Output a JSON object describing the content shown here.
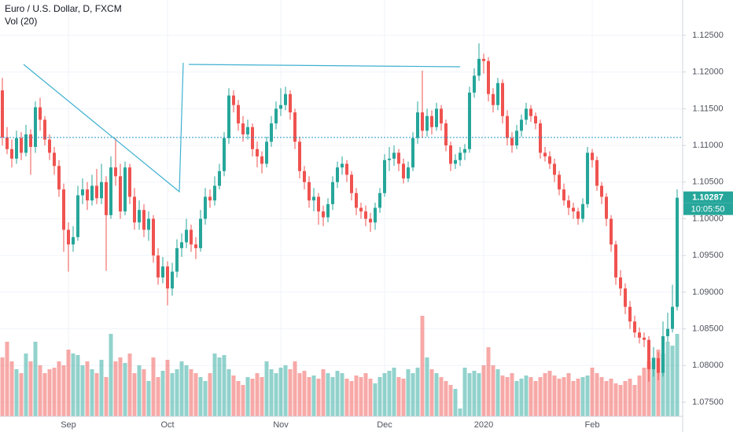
{
  "chart_data": {
    "type": "candlestick",
    "title": "Euro / U.S. Dollar, D, FXCM",
    "volume_title": "Vol (20)",
    "last_price_label": "1.10287",
    "countdown": "10:05:50",
    "up_color": "#26a69a",
    "down_color": "#ef5350",
    "ylim": [
      1.07307,
      1.12982
    ],
    "yticks": [
      {
        "value": 1.125,
        "label": "1.12500"
      },
      {
        "value": 1.12,
        "label": "1.12000"
      },
      {
        "value": 1.115,
        "label": "1.11500"
      },
      {
        "value": 1.11,
        "label": "1.11000"
      },
      {
        "value": 1.105,
        "label": "1.10500"
      },
      {
        "value": 1.1,
        "label": "1.10000"
      },
      {
        "value": 1.095,
        "label": "1.09500"
      },
      {
        "value": 1.09,
        "label": "1.09000"
      },
      {
        "value": 1.085,
        "label": "1.08500"
      },
      {
        "value": 1.08,
        "label": "1.08000"
      },
      {
        "value": 1.075,
        "label": "1.07500"
      }
    ],
    "grid": true,
    "vol_lim": [
      0,
      128
    ],
    "categories": [
      null,
      null,
      null,
      null,
      null,
      null,
      null,
      null,
      null,
      null,
      null,
      null,
      null,
      null,
      "Sep",
      null,
      null,
      null,
      null,
      null,
      null,
      null,
      null,
      null,
      null,
      null,
      null,
      null,
      null,
      null,
      null,
      null,
      null,
      null,
      null,
      "Oct",
      null,
      null,
      null,
      null,
      null,
      null,
      null,
      null,
      null,
      null,
      null,
      null,
      null,
      null,
      null,
      null,
      null,
      null,
      null,
      null,
      null,
      null,
      null,
      "Nov",
      null,
      null,
      null,
      null,
      null,
      null,
      null,
      null,
      null,
      null,
      null,
      null,
      null,
      null,
      null,
      null,
      null,
      null,
      null,
      null,
      null,
      "Dec",
      null,
      null,
      null,
      null,
      null,
      null,
      null,
      null,
      null,
      null,
      null,
      null,
      null,
      null,
      null,
      null,
      null,
      null,
      null,
      null,
      "2020",
      null,
      null,
      null,
      null,
      null,
      null,
      null,
      null,
      null,
      null,
      null,
      null,
      null,
      null,
      null,
      null,
      null,
      null,
      null,
      null,
      null,
      null,
      "Feb",
      null,
      null,
      null,
      null,
      null,
      null,
      null,
      null,
      null,
      null,
      null,
      null,
      null,
      null,
      null,
      null,
      null,
      null
    ],
    "candles": [
      [
        1.1175,
        1.1192,
        1.11,
        1.1111
      ],
      [
        1.1111,
        1.1125,
        1.1088,
        1.1095
      ],
      [
        1.1095,
        1.1108,
        1.107,
        1.1082
      ],
      [
        1.1082,
        1.112,
        1.1075,
        1.111
      ],
      [
        1.111,
        1.1118,
        1.108,
        1.109
      ],
      [
        1.109,
        1.1128,
        1.1085,
        1.1115
      ],
      [
        1.1115,
        1.1122,
        1.106,
        1.1098
      ],
      [
        1.1098,
        1.116,
        1.109,
        1.1152
      ],
      [
        1.1152,
        1.1165,
        1.112,
        1.1135
      ],
      [
        1.1135,
        1.114,
        1.11,
        1.1108
      ],
      [
        1.1108,
        1.1115,
        1.108,
        1.109
      ],
      [
        1.109,
        1.1098,
        1.106,
        1.1072
      ],
      [
        1.1072,
        1.108,
        1.103,
        1.104
      ],
      [
        1.104,
        1.1048,
        1.0955,
        1.0985
      ],
      [
        1.0985,
        1.0995,
        1.0928,
        1.0965
      ],
      [
        1.0965,
        1.099,
        1.0955,
        1.0975
      ],
      [
        1.0975,
        1.1045,
        1.097,
        1.1032
      ],
      [
        1.1032,
        1.1055,
        1.102,
        1.104
      ],
      [
        1.104,
        1.105,
        1.1012,
        1.1025
      ],
      [
        1.1025,
        1.106,
        1.1018,
        1.1045
      ],
      [
        1.1045,
        1.1068,
        1.102,
        1.1028
      ],
      [
        1.1028,
        1.1075,
        1.102,
        1.105
      ],
      [
        1.105,
        1.1058,
        1.0929,
        1.1005
      ],
      [
        1.1005,
        1.1085,
        1.1,
        1.107
      ],
      [
        1.107,
        1.111,
        1.1045,
        1.1058
      ],
      [
        1.1058,
        1.1075,
        1.1,
        1.101
      ],
      [
        1.101,
        1.1078,
        1.1005,
        1.107
      ],
      [
        1.107,
        1.1075,
        1.102,
        1.103
      ],
      [
        1.103,
        1.1042,
        1.0985,
        1.0995
      ],
      [
        1.0995,
        1.1025,
        1.0985,
        1.1012
      ],
      [
        1.1012,
        1.102,
        1.0975,
        1.0985
      ],
      [
        1.0985,
        1.101,
        1.097,
        1.1
      ],
      [
        1.1,
        1.1005,
        1.094,
        1.095
      ],
      [
        1.095,
        1.096,
        1.091,
        1.092
      ],
      [
        1.092,
        1.0948,
        1.0912,
        1.0935
      ],
      [
        1.0935,
        1.0942,
        1.0882,
        1.0905
      ],
      [
        1.0905,
        1.094,
        1.0895,
        1.0928
      ],
      [
        1.0928,
        1.0972,
        1.092,
        1.096
      ],
      [
        1.096,
        1.098,
        1.0948,
        1.0968
      ],
      [
        1.0968,
        1.1,
        1.096,
        1.0985
      ],
      [
        1.0985,
        1.0992,
        1.0955,
        1.0965
      ],
      [
        1.0965,
        1.0975,
        1.0945,
        1.096
      ],
      [
        1.096,
        1.1012,
        1.0955,
        1.1
      ],
      [
        1.1,
        1.1042,
        1.0992,
        1.103
      ],
      [
        1.103,
        1.104,
        1.1015,
        1.1025
      ],
      [
        1.1025,
        1.1058,
        1.1018,
        1.1045
      ],
      [
        1.1045,
        1.1075,
        1.104,
        1.1065
      ],
      [
        1.1065,
        1.1118,
        1.1058,
        1.111
      ],
      [
        1.111,
        1.1178,
        1.1102,
        1.1168
      ],
      [
        1.1168,
        1.1175,
        1.1145,
        1.1155
      ],
      [
        1.1155,
        1.1162,
        1.112,
        1.113
      ],
      [
        1.113,
        1.114,
        1.1105,
        1.1115
      ],
      [
        1.1115,
        1.1135,
        1.1108,
        1.1125
      ],
      [
        1.1125,
        1.113,
        1.1085,
        1.1095
      ],
      [
        1.1095,
        1.1105,
        1.107,
        1.1085
      ],
      [
        1.1085,
        1.1092,
        1.1062,
        1.1075
      ],
      [
        1.1075,
        1.1112,
        1.107,
        1.1105
      ],
      [
        1.1105,
        1.114,
        1.1098,
        1.113
      ],
      [
        1.113,
        1.116,
        1.1122,
        1.115
      ],
      [
        1.115,
        1.1178,
        1.114,
        1.1155
      ],
      [
        1.1155,
        1.118,
        1.1148,
        1.117
      ],
      [
        1.117,
        1.1175,
        1.1135,
        1.1145
      ],
      [
        1.1145,
        1.115,
        1.1095,
        1.1105
      ],
      [
        1.1105,
        1.1112,
        1.1055,
        1.1065
      ],
      [
        1.1065,
        1.1072,
        1.104,
        1.105
      ],
      [
        1.105,
        1.1058,
        1.1015,
        1.1025
      ],
      [
        1.1025,
        1.1042,
        1.101,
        1.103
      ],
      [
        1.103,
        1.1035,
        1.0992,
        1.101
      ],
      [
        1.101,
        1.1018,
        1.099,
        1.1002
      ],
      [
        1.1002,
        1.1028,
        1.0995,
        1.102
      ],
      [
        1.102,
        1.1058,
        1.1012,
        1.105
      ],
      [
        1.105,
        1.1078,
        1.1042,
        1.107
      ],
      [
        1.107,
        1.1085,
        1.106,
        1.1075
      ],
      [
        1.1075,
        1.108,
        1.105,
        1.106
      ],
      [
        1.106,
        1.1065,
        1.1025,
        1.1035
      ],
      [
        1.1035,
        1.1042,
        1.1005,
        1.1015
      ],
      [
        1.1015,
        1.1022,
        1.1,
        1.101
      ],
      [
        1.101,
        1.1018,
        1.099,
        1.1
      ],
      [
        1.1,
        1.1008,
        1.0982,
        1.0995
      ],
      [
        1.0995,
        1.1022,
        1.0985,
        1.1015
      ],
      [
        1.1015,
        1.1042,
        1.1008,
        1.1035
      ],
      [
        1.1035,
        1.1088,
        1.103,
        1.108
      ],
      [
        1.108,
        1.1098,
        1.1065,
        1.1082
      ],
      [
        1.1082,
        1.11,
        1.1072,
        1.109
      ],
      [
        1.109,
        1.1095,
        1.1065,
        1.1075
      ],
      [
        1.1075,
        1.1082,
        1.1048,
        1.1055
      ],
      [
        1.1055,
        1.1078,
        1.105,
        1.107
      ],
      [
        1.107,
        1.1118,
        1.1065,
        1.111
      ],
      [
        1.111,
        1.116,
        1.1102,
        1.1145
      ],
      [
        1.1145,
        1.1202,
        1.111,
        1.112
      ],
      [
        1.112,
        1.115,
        1.1112,
        1.114
      ],
      [
        1.114,
        1.1148,
        1.1115,
        1.1125
      ],
      [
        1.1125,
        1.1158,
        1.112,
        1.115
      ],
      [
        1.115,
        1.1155,
        1.112,
        1.113
      ],
      [
        1.113,
        1.1135,
        1.1092,
        1.11
      ],
      [
        1.11,
        1.1105,
        1.1065,
        1.1075
      ],
      [
        1.1075,
        1.1088,
        1.1068,
        1.108
      ],
      [
        1.108,
        1.1098,
        1.1072,
        1.109
      ],
      [
        1.109,
        1.1102,
        1.108,
        1.1095
      ],
      [
        1.1095,
        1.118,
        1.109,
        1.1172
      ],
      [
        1.1172,
        1.1205,
        1.1165,
        1.1195
      ],
      [
        1.1195,
        1.1239,
        1.1188,
        1.1218
      ],
      [
        1.1218,
        1.1225,
        1.1198,
        1.1215
      ],
      [
        1.1215,
        1.122,
        1.116,
        1.117
      ],
      [
        1.117,
        1.1178,
        1.1145,
        1.1155
      ],
      [
        1.1155,
        1.1192,
        1.1148,
        1.1185
      ],
      [
        1.1185,
        1.119,
        1.113,
        1.114
      ],
      [
        1.114,
        1.1148,
        1.11,
        1.111
      ],
      [
        1.111,
        1.1118,
        1.109,
        1.11
      ],
      [
        1.11,
        1.1128,
        1.1095,
        1.112
      ],
      [
        1.112,
        1.1142,
        1.1112,
        1.1135
      ],
      [
        1.1135,
        1.1158,
        1.1128,
        1.115
      ],
      [
        1.115,
        1.1155,
        1.1132,
        1.114
      ],
      [
        1.114,
        1.1145,
        1.1122,
        1.113
      ],
      [
        1.113,
        1.1135,
        1.1082,
        1.109
      ],
      [
        1.109,
        1.1098,
        1.1078,
        1.1085
      ],
      [
        1.1085,
        1.1092,
        1.1068,
        1.1075
      ],
      [
        1.1075,
        1.1082,
        1.105,
        1.106
      ],
      [
        1.106,
        1.1065,
        1.1032,
        1.104
      ],
      [
        1.104,
        1.1048,
        1.1018,
        1.1025
      ],
      [
        1.1025,
        1.1032,
        1.1005,
        1.1015
      ],
      [
        1.1015,
        1.1022,
        1.1,
        1.101
      ],
      [
        1.101,
        1.1015,
        1.0992,
        1.1
      ],
      [
        1.1,
        1.1028,
        1.0995,
        1.102
      ],
      [
        1.102,
        1.1098,
        1.1015,
        1.109
      ],
      [
        1.109,
        1.1095,
        1.107,
        1.108
      ],
      [
        1.108,
        1.1085,
        1.1038,
        1.1045
      ],
      [
        1.1045,
        1.105,
        1.102,
        1.103
      ],
      [
        1.103,
        1.1035,
        1.099,
        1.1
      ],
      [
        1.1,
        1.1005,
        1.0955,
        1.0965
      ],
      [
        1.0965,
        1.097,
        1.091,
        1.092
      ],
      [
        1.092,
        1.093,
        1.0895,
        1.0905
      ],
      [
        1.0905,
        1.0912,
        1.087,
        1.088
      ],
      [
        1.088,
        1.0888,
        1.085,
        1.086
      ],
      [
        1.086,
        1.0868,
        1.0838,
        1.0845
      ],
      [
        1.0845,
        1.0852,
        1.083,
        1.0838
      ],
      [
        1.0838,
        1.0845,
        1.0825,
        1.0835
      ],
      [
        1.0835,
        1.084,
        1.0778,
        1.0795
      ],
      [
        1.0795,
        1.0825,
        1.0785,
        1.081
      ],
      [
        1.081,
        1.0818,
        1.078,
        1.079
      ],
      [
        1.079,
        1.086,
        1.0785,
        1.084
      ],
      [
        1.084,
        1.0872,
        1.0832,
        1.085
      ],
      [
        1.085,
        1.091,
        1.0845,
        1.088
      ],
      [
        1.088,
        1.104,
        1.0875,
        1.10287
      ]
    ],
    "volume": [
      75,
      95,
      70,
      60,
      55,
      80,
      70,
      95,
      65,
      55,
      60,
      62,
      70,
      65,
      85,
      80,
      78,
      65,
      70,
      60,
      55,
      72,
      50,
      105,
      70,
      75,
      68,
      80,
      55,
      65,
      60,
      45,
      75,
      50,
      58,
      72,
      55,
      60,
      70,
      65,
      60,
      55,
      50,
      45,
      55,
      80,
      75,
      78,
      60,
      52,
      45,
      40,
      50,
      48,
      55,
      50,
      70,
      60,
      55,
      62,
      65,
      60,
      70,
      55,
      58,
      50,
      52,
      48,
      60,
      55,
      50,
      58,
      55,
      48,
      45,
      52,
      50,
      55,
      48,
      42,
      50,
      55,
      58,
      62,
      50,
      48,
      60,
      55,
      62,
      128,
      75,
      60,
      55,
      50,
      45,
      40,
      35,
      10,
      62,
      55,
      58,
      55,
      65,
      88,
      65,
      60,
      52,
      50,
      55,
      45,
      48,
      52,
      50,
      45,
      50,
      55,
      58,
      52,
      48,
      50,
      55,
      45,
      48,
      50,
      52,
      62,
      55,
      50,
      45,
      48,
      42,
      40,
      45,
      48,
      40,
      52,
      62,
      70,
      75,
      85,
      80,
      95,
      90,
      105
    ]
  }
}
